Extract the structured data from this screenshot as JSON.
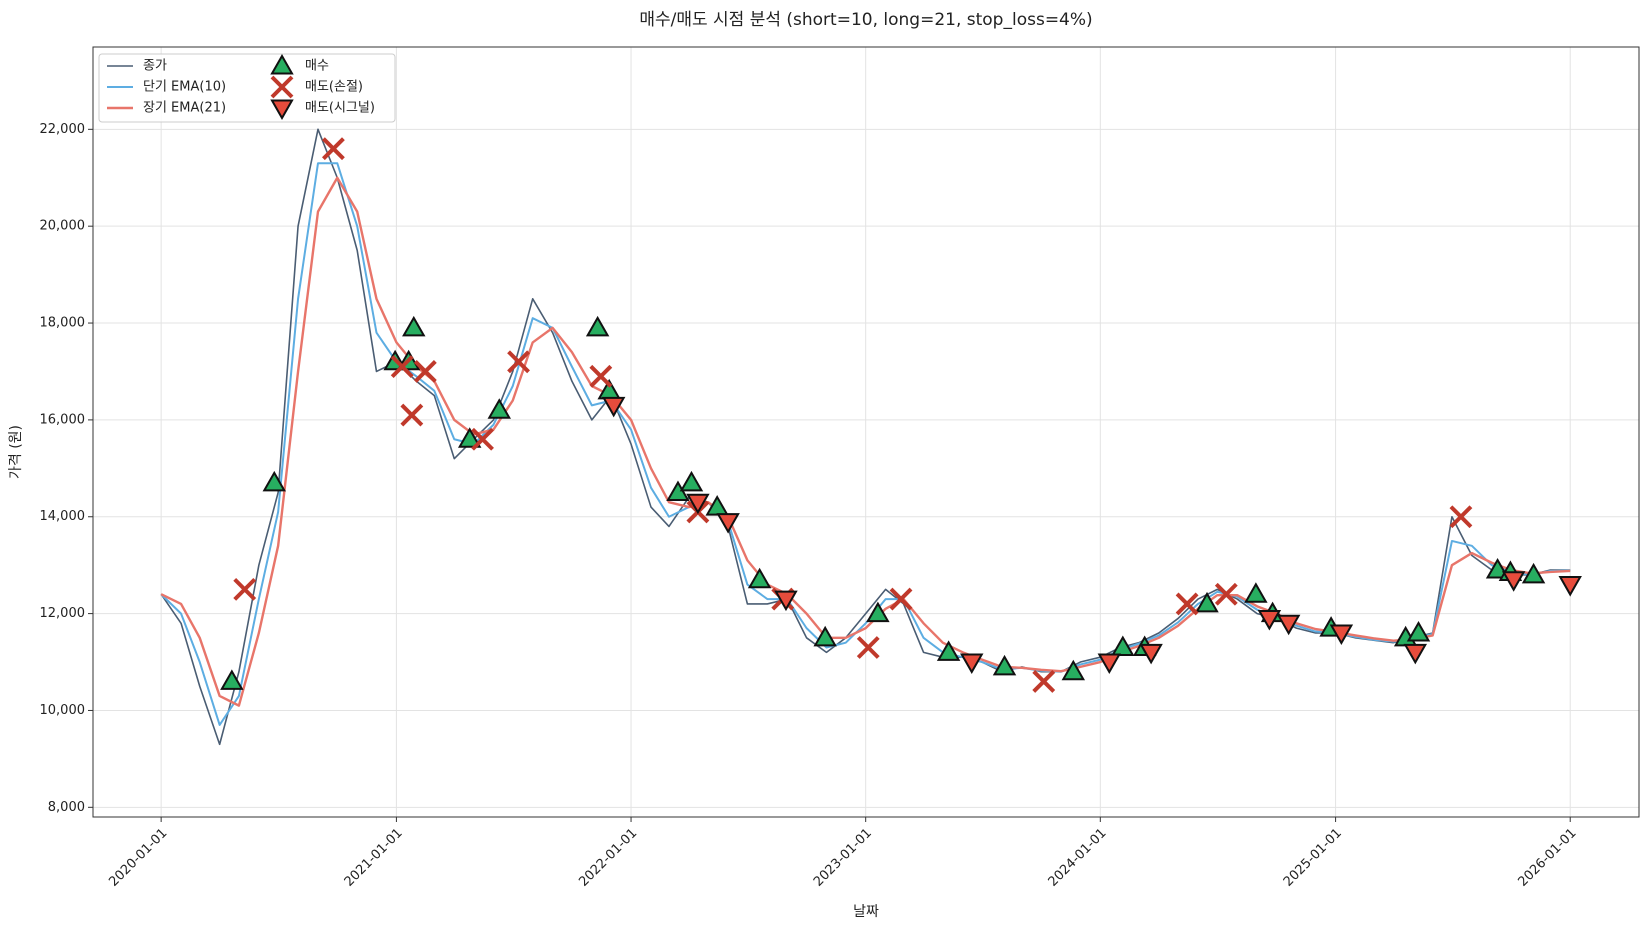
{
  "chart_data": {
    "type": "line",
    "title": "매수/매도 시점 분석 (short=10, long=21, stop_loss=4%)",
    "xlabel": "날짜",
    "ylabel": "가격 (원)",
    "xlim": [
      "2019-09-17",
      "2026-04-18"
    ],
    "xticks": [
      "2020-01-01",
      "2021-01-01",
      "2022-01-01",
      "2023-01-01",
      "2024-01-01",
      "2025-01-01",
      "2026-01-01"
    ],
    "ylim": [
      7800,
      23700
    ],
    "yticks": [
      {
        "value": 8000,
        "label": "8,000"
      },
      {
        "value": 10000,
        "label": "10,000"
      },
      {
        "value": 12000,
        "label": "12,000"
      },
      {
        "value": 14000,
        "label": "14,000"
      },
      {
        "value": 16000,
        "label": "16,000"
      },
      {
        "value": 18000,
        "label": "18,000"
      },
      {
        "value": 20000,
        "label": "20,000"
      },
      {
        "value": 22000,
        "label": "22,000"
      }
    ],
    "grid": true,
    "legend": "upper left",
    "x": [
      "2020-01-01",
      "2020-02-01",
      "2020-03-01",
      "2020-04-01",
      "2020-05-01",
      "2020-06-01",
      "2020-07-01",
      "2020-08-01",
      "2020-09-01",
      "2020-10-01",
      "2020-11-01",
      "2020-12-01",
      "2021-01-01",
      "2021-02-01",
      "2021-03-01",
      "2021-04-01",
      "2021-05-01",
      "2021-06-01",
      "2021-07-01",
      "2021-08-01",
      "2021-09-01",
      "2021-10-01",
      "2021-11-01",
      "2021-12-01",
      "2022-01-01",
      "2022-02-01",
      "2022-03-01",
      "2022-04-01",
      "2022-05-01",
      "2022-06-01",
      "2022-07-01",
      "2022-08-01",
      "2022-09-01",
      "2022-10-01",
      "2022-11-01",
      "2022-12-01",
      "2023-01-01",
      "2023-02-01",
      "2023-03-01",
      "2023-04-01",
      "2023-05-01",
      "2023-06-01",
      "2023-07-01",
      "2023-08-01",
      "2023-09-01",
      "2023-10-01",
      "2023-11-01",
      "2023-12-01",
      "2024-01-01",
      "2024-02-01",
      "2024-03-01",
      "2024-04-01",
      "2024-05-01",
      "2024-06-01",
      "2024-07-01",
      "2024-08-01",
      "2024-09-01",
      "2024-10-01",
      "2024-11-01",
      "2024-12-01",
      "2025-01-01",
      "2025-02-01",
      "2025-03-01",
      "2025-04-01",
      "2025-05-01",
      "2025-06-01",
      "2025-07-01",
      "2025-08-01",
      "2025-09-01",
      "2025-10-01",
      "2025-11-01",
      "2025-12-01",
      "2026-01-01"
    ],
    "series": [
      {
        "name": "종가",
        "color": "#4a5d73",
        "style": "line",
        "width": 1.6,
        "values": [
          12400,
          11800,
          10500,
          9300,
          10800,
          13000,
          14500,
          20000,
          22000,
          21000,
          19500,
          17000,
          17200,
          16800,
          16500,
          15200,
          15600,
          16000,
          17000,
          18500,
          17800,
          16800,
          16000,
          16500,
          15500,
          14200,
          13800,
          14400,
          14300,
          13800,
          12200,
          12200,
          12300,
          11500,
          11200,
          11500,
          12000,
          12500,
          12200,
          11200,
          11100,
          11100,
          11000,
          10800,
          10900,
          10800,
          10800,
          11000,
          11100,
          11300,
          11400,
          11600,
          11900,
          12300,
          12500,
          12300,
          12000,
          11900,
          11700,
          11600,
          11600,
          11500,
          11450,
          11400,
          11500,
          11600,
          14000,
          13200,
          12900,
          12800,
          12800,
          12900,
          12900
        ]
      },
      {
        "name": "단기 EMA(10)",
        "color": "#5dade2",
        "style": "line",
        "width": 2,
        "values": [
          12400,
          12000,
          11000,
          9700,
          10300,
          12300,
          14100,
          18500,
          21300,
          21300,
          20000,
          17800,
          17200,
          16900,
          16600,
          15600,
          15500,
          15900,
          16700,
          18100,
          17900,
          17100,
          16300,
          16400,
          15800,
          14600,
          14000,
          14200,
          14300,
          13900,
          12600,
          12300,
          12300,
          11700,
          11300,
          11400,
          11800,
          12300,
          12300,
          11500,
          11200,
          11100,
          11000,
          10850,
          10880,
          10820,
          10800,
          10950,
          11050,
          11250,
          11380,
          11550,
          11820,
          12200,
          12450,
          12350,
          12080,
          11930,
          11750,
          11630,
          11600,
          11520,
          11460,
          11420,
          11480,
          11580,
          13500,
          13400,
          13000,
          12850,
          12800,
          12880,
          12890
        ]
      },
      {
        "name": "장기 EMA(21)",
        "color": "#e8756a",
        "style": "line",
        "width": 2.4,
        "values": [
          12400,
          12200,
          11500,
          10300,
          10100,
          11600,
          13400,
          17000,
          20300,
          21000,
          20300,
          18500,
          17600,
          17100,
          16800,
          16000,
          15700,
          15800,
          16400,
          17600,
          17900,
          17400,
          16700,
          16500,
          16000,
          15000,
          14300,
          14200,
          14300,
          14000,
          13100,
          12600,
          12400,
          12000,
          11500,
          11500,
          11700,
          12100,
          12300,
          11800,
          11400,
          11200,
          11050,
          10900,
          10880,
          10840,
          10810,
          10900,
          11000,
          11200,
          11330,
          11500,
          11750,
          12100,
          12380,
          12380,
          12150,
          12000,
          11800,
          11680,
          11620,
          11550,
          11490,
          11440,
          11470,
          11550,
          13000,
          13250,
          13050,
          12900,
          12830,
          12860,
          12880
        ]
      },
      {
        "name": "매수",
        "color": "#27ae60",
        "style": "triangle-up",
        "x": [
          "2020-04-20",
          "2020-06-25",
          "2020-12-30",
          "2021-01-20",
          "2021-01-28",
          "2021-04-25",
          "2021-06-10",
          "2021-11-10",
          "2021-11-28",
          "2022-03-15",
          "2022-04-05",
          "2022-05-15",
          "2022-07-20",
          "2022-10-30",
          "2023-01-20",
          "2023-05-10",
          "2023-08-05",
          "2023-11-20",
          "2024-02-05",
          "2024-03-10",
          "2024-06-15",
          "2024-08-30",
          "2024-09-25",
          "2024-12-25",
          "2025-04-20",
          "2025-05-10",
          "2025-09-10",
          "2025-09-30",
          "2025-11-05"
        ],
        "values": [
          10600,
          14700,
          17200,
          17200,
          17900,
          15600,
          16200,
          17900,
          16600,
          14500,
          14700,
          14200,
          12700,
          11500,
          12000,
          11200,
          10900,
          10800,
          11300,
          11300,
          12200,
          12400,
          12000,
          11700,
          11500,
          11600,
          12900,
          12850,
          12800
        ]
      },
      {
        "name": "매도(손절)",
        "color": "#c0392b",
        "style": "x",
        "x": [
          "2020-05-10",
          "2020-09-25",
          "2021-01-10",
          "2021-01-25",
          "2021-02-15",
          "2021-05-15",
          "2021-07-10",
          "2021-11-15",
          "2022-04-15",
          "2022-08-25",
          "2023-01-05",
          "2023-02-25",
          "2023-10-05",
          "2024-05-15",
          "2024-07-15",
          "2025-07-15"
        ],
        "values": [
          12500,
          21600,
          17100,
          16100,
          17000,
          15600,
          17200,
          16900,
          14100,
          12300,
          11300,
          12300,
          10600,
          12200,
          12400,
          14000
        ]
      },
      {
        "name": "매도(시그널)",
        "color": "#e74c3c",
        "style": "triangle-down",
        "x": [
          "2021-12-05",
          "2022-04-15",
          "2022-06-01",
          "2022-08-30",
          "2023-06-15",
          "2024-01-15",
          "2024-03-20",
          "2024-09-20",
          "2024-10-20",
          "2025-01-10",
          "2025-05-05",
          "2025-10-05",
          "2026-01-01"
        ],
        "values": [
          16300,
          14300,
          13900,
          12300,
          11000,
          11000,
          11200,
          11900,
          11800,
          11600,
          11200,
          12700,
          12600
        ]
      }
    ]
  }
}
